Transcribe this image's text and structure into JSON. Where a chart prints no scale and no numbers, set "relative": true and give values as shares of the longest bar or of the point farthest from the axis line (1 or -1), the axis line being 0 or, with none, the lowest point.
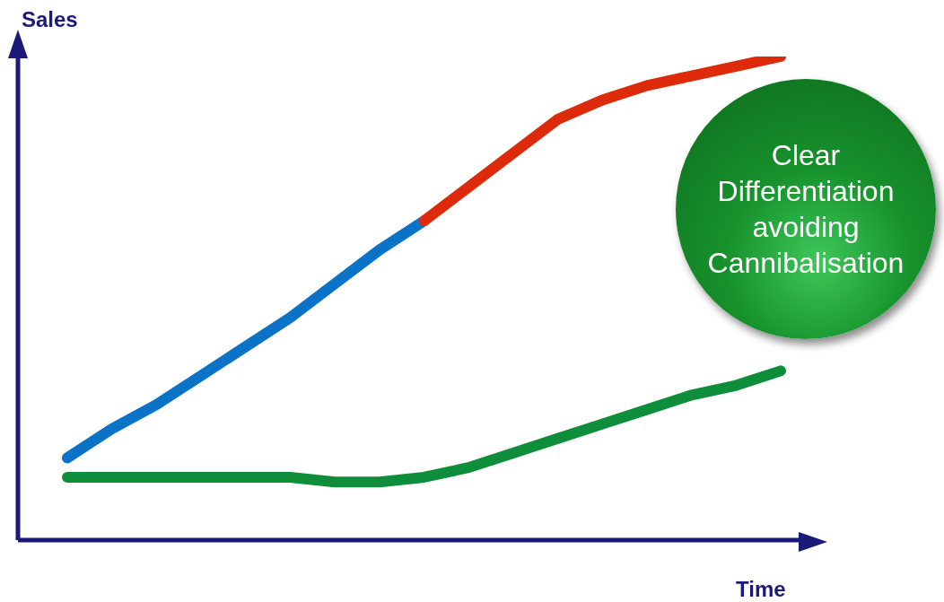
{
  "chart_data": {
    "type": "line",
    "relative": true,
    "xlabel": "Time",
    "ylabel": "Sales",
    "categories": [
      null,
      null,
      null,
      null,
      null,
      null,
      null,
      null,
      null,
      null,
      null,
      null,
      null,
      null,
      null,
      null,
      null
    ],
    "series": [
      {
        "color": "#0a73c8",
        "values": [
          0.17,
          0.23,
          0.28,
          0.34,
          0.4,
          0.46,
          0.53,
          0.6,
          0.66,
          null,
          null,
          null,
          null,
          null,
          null,
          null,
          null
        ]
      },
      {
        "color": "#dd2a0a",
        "values": [
          null,
          null,
          null,
          null,
          null,
          null,
          null,
          null,
          0.66,
          0.73,
          0.8,
          0.87,
          0.91,
          0.94,
          0.96,
          0.98,
          1
        ]
      },
      {
        "color": "#0e8e3a",
        "values": [
          0.13,
          0.13,
          0.13,
          0.13,
          0.13,
          0.13,
          0.12,
          0.12,
          0.13,
          0.15,
          0.18,
          0.21,
          0.24,
          0.27,
          0.3,
          0.32,
          0.35
        ]
      }
    ],
    "annotations": [
      "Clear\nDifferentiation\navoiding\nCannibalisation"
    ]
  }
}
